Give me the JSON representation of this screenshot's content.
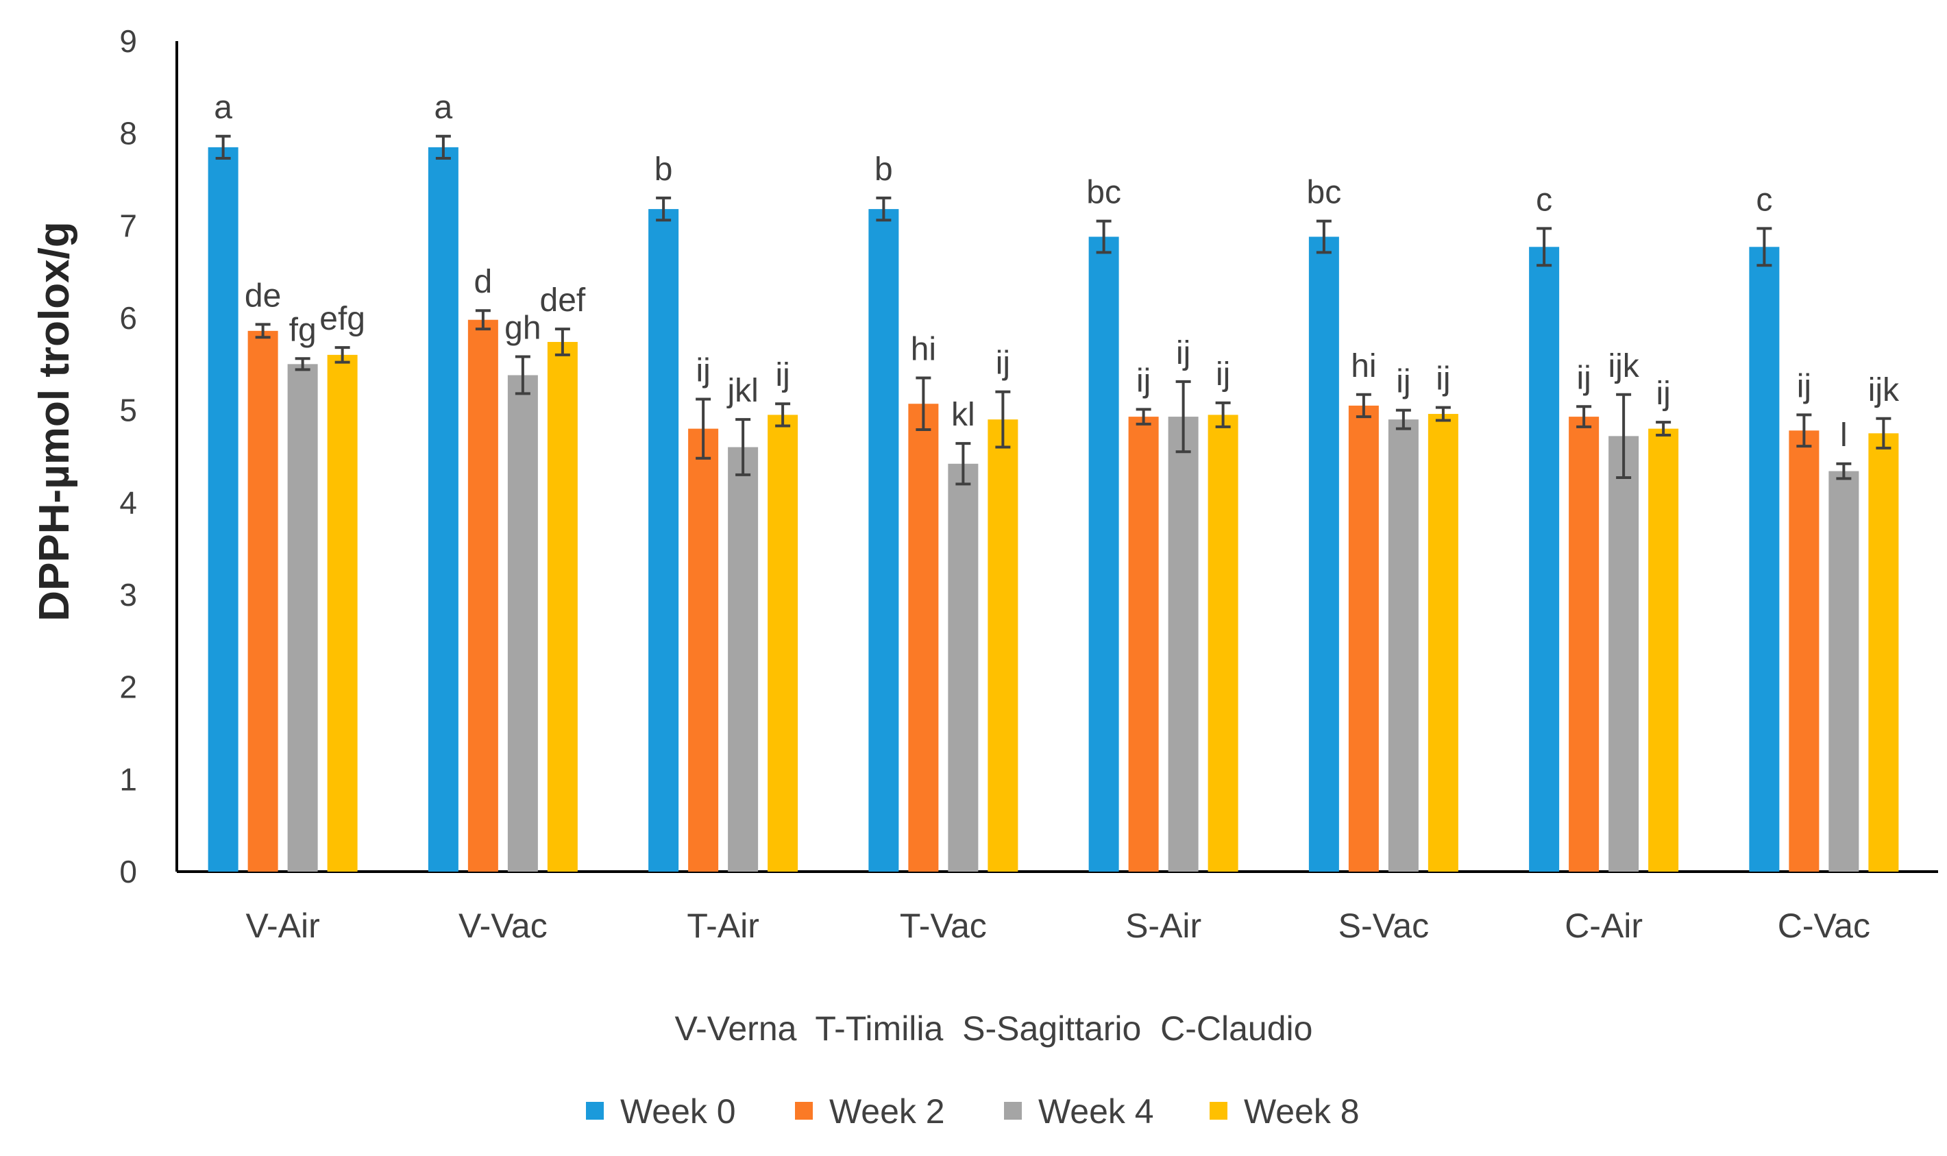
{
  "chart_data": {
    "type": "bar",
    "title": "",
    "xlabel": "",
    "ylabel": "DPPH-µmol trolox/g",
    "ylim": [
      0,
      9
    ],
    "yticks": [
      0,
      1,
      2,
      3,
      4,
      5,
      6,
      7,
      8,
      9
    ],
    "grid": false,
    "categories": [
      "V-Air",
      "V-Vac",
      "T-Air",
      "T-Vac",
      "S-Air",
      "S-Vac",
      "C-Air",
      "C-Vac"
    ],
    "series": [
      {
        "name": "Week 0",
        "color": "#1B9ADB",
        "values": [
          7.85,
          7.85,
          7.18,
          7.18,
          6.88,
          6.88,
          6.77,
          6.77
        ],
        "errors": [
          0.12,
          0.12,
          0.12,
          0.12,
          0.17,
          0.17,
          0.2,
          0.2
        ],
        "labels": [
          "a",
          "a",
          "b",
          "b",
          "bc",
          "bc",
          "c",
          "c"
        ]
      },
      {
        "name": "Week 2",
        "color": "#FB7A26",
        "values": [
          5.86,
          5.98,
          4.8,
          5.07,
          4.93,
          5.05,
          4.93,
          4.78
        ],
        "errors": [
          0.07,
          0.1,
          0.32,
          0.28,
          0.08,
          0.12,
          0.11,
          0.17
        ],
        "labels": [
          "de",
          "d",
          "ij",
          "hi",
          "ij",
          "hi",
          "ij",
          "ij"
        ]
      },
      {
        "name": "Week 4",
        "color": "#A5A5A5",
        "values": [
          5.5,
          5.38,
          4.6,
          4.42,
          4.93,
          4.9,
          4.72,
          4.34
        ],
        "errors": [
          0.06,
          0.2,
          0.3,
          0.22,
          0.38,
          0.1,
          0.45,
          0.08
        ],
        "labels": [
          "fg",
          "gh",
          "jkl",
          "kl",
          "ij",
          "ij",
          "ijk",
          "l"
        ]
      },
      {
        "name": "Week 8",
        "color": "#FFC000",
        "values": [
          5.6,
          5.74,
          4.95,
          4.9,
          4.95,
          4.96,
          4.8,
          4.75
        ],
        "errors": [
          0.08,
          0.14,
          0.12,
          0.3,
          0.13,
          0.07,
          0.07,
          0.16
        ],
        "labels": [
          "efg",
          "def",
          "ij",
          "ij",
          "ij",
          "ij",
          "ij",
          "ijk"
        ]
      }
    ],
    "annotation": "V-Verna  T-Timilia  S-Sagittario  C-Claudio",
    "legend_position": "bottom"
  }
}
